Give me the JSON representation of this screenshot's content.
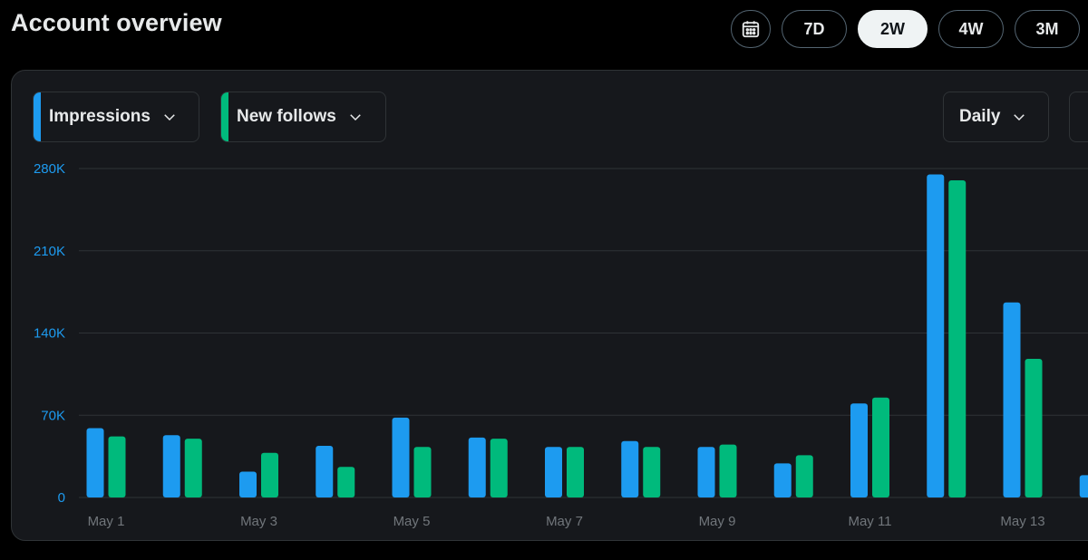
{
  "page": {
    "title": "Account overview"
  },
  "range_options": [
    "7D",
    "2W",
    "4W",
    "3M"
  ],
  "active_range": "2W",
  "icons": {
    "calendar": "calendar-icon",
    "chevron": "chevron-down-icon"
  },
  "controls": {
    "metric1": {
      "label": "Impressions",
      "color": "#1d9bf0"
    },
    "metric2": {
      "label": "New follows",
      "color": "#00ba7c"
    },
    "interval": {
      "label": "Daily"
    }
  },
  "chart_data": {
    "type": "bar",
    "categories": [
      "May 1",
      "May 2",
      "May 3",
      "May 4",
      "May 5",
      "May 6",
      "May 7",
      "May 8",
      "May 9",
      "May 10",
      "May 11",
      "May 12",
      "May 13",
      "May 14"
    ],
    "x_tick_labels": [
      "May 1",
      "May 3",
      "May 5",
      "May 7",
      "May 9",
      "May 11",
      "May 13"
    ],
    "series": [
      {
        "name": "Impressions",
        "color": "#1d9bf0",
        "values": [
          59000,
          53000,
          22000,
          44000,
          68000,
          51000,
          43000,
          48000,
          43000,
          29000,
          80000,
          275000,
          166000,
          19000
        ]
      },
      {
        "name": "New follows",
        "color": "#00ba7c",
        "values": [
          52000,
          50000,
          38000,
          26000,
          43000,
          50000,
          43000,
          43000,
          45000,
          36000,
          85000,
          270000,
          118000,
          null
        ]
      }
    ],
    "y_ticks": [
      0,
      70000,
      140000,
      210000,
      280000
    ],
    "y_tick_labels": [
      "0",
      "70K",
      "140K",
      "210K",
      "280K"
    ],
    "ylim": [
      0,
      280000
    ],
    "grid": true,
    "legend": "dropdowns top-left"
  }
}
